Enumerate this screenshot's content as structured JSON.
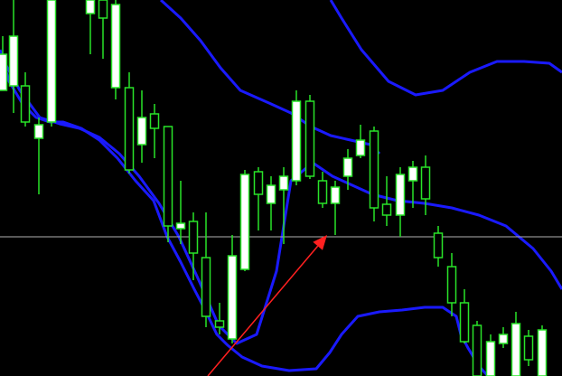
{
  "chart_data": {
    "type": "candlestick",
    "title": "",
    "grid": false,
    "y_domain": [
      416,
      0
    ],
    "horizontal_line": {
      "value": 262,
      "color": "#b0b0b0"
    },
    "bollinger_bands": {
      "color": "#1a1aff",
      "upper_outer": [
        [
          178,
          0
        ],
        [
          200,
          20
        ],
        [
          222,
          45
        ],
        [
          244,
          75
        ],
        [
          266,
          100
        ],
        [
          300,
          115
        ],
        [
          322,
          125
        ],
        [
          344,
          140
        ],
        [
          366,
          150
        ],
        [
          388,
          155
        ],
        [
          410,
          160
        ],
        [
          420,
          170
        ]
      ],
      "upper_right": [
        [
          366,
          0
        ],
        [
          378,
          20
        ],
        [
          400,
          55
        ],
        [
          430,
          90
        ],
        [
          460,
          105
        ],
        [
          490,
          100
        ],
        [
          520,
          80
        ],
        [
          550,
          68
        ],
        [
          580,
          68
        ],
        [
          608,
          70
        ],
        [
          622,
          80
        ]
      ],
      "middle": [
        [
          0,
          60
        ],
        [
          22,
          100
        ],
        [
          44,
          130
        ],
        [
          66,
          137
        ],
        [
          88,
          142
        ],
        [
          110,
          152
        ],
        [
          132,
          170
        ],
        [
          154,
          195
        ],
        [
          176,
          225
        ],
        [
          198,
          262
        ],
        [
          220,
          310
        ],
        [
          242,
          360
        ],
        [
          262,
          380
        ],
        [
          284,
          370
        ],
        [
          306,
          300
        ],
        [
          322,
          200
        ],
        [
          346,
          180
        ],
        [
          368,
          195
        ],
        [
          390,
          205
        ],
        [
          412,
          215
        ],
        [
          440,
          222
        ],
        [
          470,
          225
        ],
        [
          500,
          230
        ],
        [
          530,
          238
        ],
        [
          560,
          250
        ],
        [
          590,
          275
        ],
        [
          610,
          300
        ],
        [
          622,
          320
        ]
      ],
      "lower": [
        [
          0,
          55
        ],
        [
          10,
          90
        ],
        [
          25,
          115
        ],
        [
          40,
          130
        ],
        [
          55,
          135
        ],
        [
          70,
          135
        ],
        [
          90,
          142
        ],
        [
          110,
          155
        ],
        [
          130,
          175
        ],
        [
          150,
          200
        ],
        [
          170,
          222
        ],
        [
          185,
          262
        ],
        [
          200,
          290
        ],
        [
          215,
          320
        ],
        [
          228,
          345
        ],
        [
          240,
          370
        ],
        [
          252,
          382
        ],
        [
          268,
          395
        ],
        [
          290,
          405
        ],
        [
          320,
          410
        ],
        [
          350,
          408
        ],
        [
          365,
          390
        ],
        [
          378,
          370
        ],
        [
          396,
          350
        ],
        [
          420,
          345
        ],
        [
          445,
          343
        ],
        [
          470,
          340
        ],
        [
          490,
          340
        ],
        [
          505,
          350
        ],
        [
          510,
          370
        ],
        [
          518,
          385
        ],
        [
          530,
          405
        ],
        [
          540,
          416
        ]
      ]
    },
    "candles": [
      {
        "x": 3,
        "wick": [
          40,
          100
        ],
        "body": [
          60,
          100
        ],
        "bull": true
      },
      {
        "x": 15,
        "wick": [
          0,
          125
        ],
        "body": [
          40,
          95
        ],
        "bull": true
      },
      {
        "x": 28,
        "wick": [
          80,
          140
        ],
        "body": [
          95,
          135
        ],
        "bull": false
      },
      {
        "x": 43,
        "wick": [
          130,
          215
        ],
        "body": [
          138,
          153
        ],
        "bull": true
      },
      {
        "x": 57,
        "wick": [
          0,
          140
        ],
        "body": [
          0,
          135
        ],
        "bull": true
      },
      {
        "x": 100,
        "wick": [
          0,
          60
        ],
        "body": [
          0,
          15
        ],
        "bull": true
      },
      {
        "x": 114,
        "wick": [
          0,
          65
        ],
        "body": [
          0,
          20
        ],
        "bull": false
      },
      {
        "x": 128,
        "wick": [
          0,
          110
        ],
        "body": [
          5,
          97
        ],
        "bull": true
      },
      {
        "x": 143,
        "wick": [
          80,
          192
        ],
        "body": [
          97,
          188
        ],
        "bull": false
      },
      {
        "x": 157,
        "wick": [
          100,
          180
        ],
        "body": [
          130,
          160
        ],
        "bull": true
      },
      {
        "x": 171,
        "wick": [
          115,
          175
        ],
        "body": [
          126,
          142
        ],
        "bull": false
      },
      {
        "x": 186,
        "wick": [
          140,
          268
        ],
        "body": [
          140,
          250
        ],
        "bull": false
      },
      {
        "x": 200,
        "wick": [
          200,
          270
        ],
        "body": [
          247,
          253
        ],
        "bull": true
      },
      {
        "x": 214,
        "wick": [
          235,
          310
        ],
        "body": [
          245,
          280
        ],
        "bull": false
      },
      {
        "x": 228,
        "wick": [
          235,
          362
        ],
        "body": [
          285,
          350
        ],
        "bull": false
      },
      {
        "x": 243,
        "wick": [
          335,
          370
        ],
        "body": [
          355,
          362
        ],
        "bull": false
      },
      {
        "x": 257,
        "wick": [
          260,
          380
        ],
        "body": [
          283,
          375
        ],
        "bull": true
      },
      {
        "x": 271,
        "wick": [
          188,
          300
        ],
        "body": [
          193,
          298
        ],
        "bull": true
      },
      {
        "x": 286,
        "wick": [
          185,
          255
        ],
        "body": [
          190,
          215
        ],
        "bull": false
      },
      {
        "x": 300,
        "wick": [
          195,
          255
        ],
        "body": [
          205,
          225
        ],
        "bull": true
      },
      {
        "x": 314,
        "wick": [
          185,
          270
        ],
        "body": [
          195,
          210
        ],
        "bull": true
      },
      {
        "x": 328,
        "wick": [
          100,
          205
        ],
        "body": [
          112,
          200
        ],
        "bull": true
      },
      {
        "x": 343,
        "wick": [
          105,
          198
        ],
        "body": [
          112,
          195
        ],
        "bull": false
      },
      {
        "x": 357,
        "wick": [
          190,
          230
        ],
        "body": [
          200,
          225
        ],
        "bull": false
      },
      {
        "x": 371,
        "wick": [
          200,
          260
        ],
        "body": [
          207,
          225
        ],
        "bull": true
      },
      {
        "x": 385,
        "wick": [
          165,
          210
        ],
        "body": [
          175,
          195
        ],
        "bull": true
      },
      {
        "x": 399,
        "wick": [
          138,
          175
        ],
        "body": [
          155,
          172
        ],
        "bull": true
      },
      {
        "x": 414,
        "wick": [
          140,
          245
        ],
        "body": [
          145,
          230
        ],
        "bull": false
      },
      {
        "x": 428,
        "wick": [
          195,
          250
        ],
        "body": [
          226,
          238
        ],
        "bull": false
      },
      {
        "x": 443,
        "wick": [
          185,
          262
        ],
        "body": [
          193,
          238
        ],
        "bull": true
      },
      {
        "x": 457,
        "wick": [
          178,
          230
        ],
        "body": [
          185,
          200
        ],
        "bull": true
      },
      {
        "x": 471,
        "wick": [
          172,
          238
        ],
        "body": [
          185,
          220
        ],
        "bull": false
      },
      {
        "x": 485,
        "wick": [
          250,
          295
        ],
        "body": [
          258,
          285
        ],
        "bull": false
      },
      {
        "x": 500,
        "wick": [
          280,
          350
        ],
        "body": [
          295,
          335
        ],
        "bull": false
      },
      {
        "x": 514,
        "wick": [
          320,
          380
        ],
        "body": [
          335,
          378
        ],
        "bull": false
      },
      {
        "x": 528,
        "wick": [
          355,
          416
        ],
        "body": [
          360,
          416
        ],
        "bull": false
      },
      {
        "x": 543,
        "wick": [
          370,
          416
        ],
        "body": [
          378,
          416
        ],
        "bull": true
      },
      {
        "x": 557,
        "wick": [
          362,
          385
        ],
        "body": [
          370,
          380
        ],
        "bull": true
      },
      {
        "x": 571,
        "wick": [
          345,
          416
        ],
        "body": [
          358,
          416
        ],
        "bull": true
      },
      {
        "x": 585,
        "wick": [
          365,
          405
        ],
        "body": [
          372,
          398
        ],
        "bull": false
      },
      {
        "x": 600,
        "wick": [
          360,
          416
        ],
        "body": [
          365,
          416
        ],
        "bull": true
      }
    ],
    "arrow": {
      "from": [
        230,
        416
      ],
      "to": [
        362,
        260
      ],
      "color": "#ff2020"
    },
    "colors": {
      "background": "#000000",
      "candle": "#29e329",
      "bull_body": "#ffffff",
      "bear_body": "#000000"
    }
  }
}
